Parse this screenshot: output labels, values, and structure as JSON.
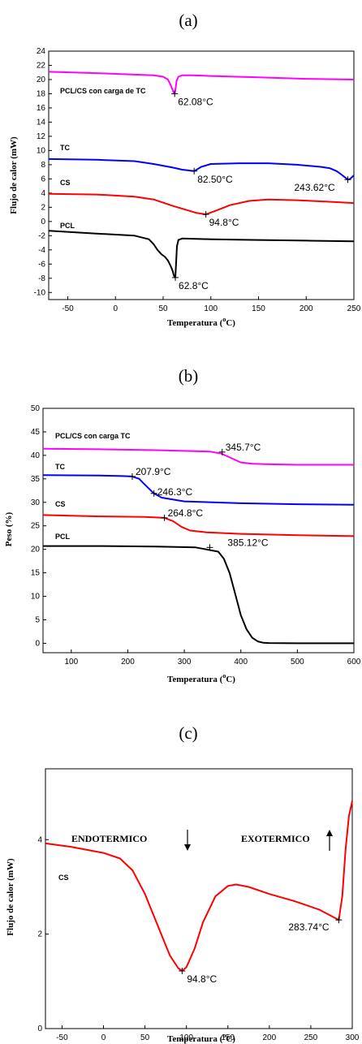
{
  "chart_data": [
    {
      "id": "a",
      "panel_label": "(a)",
      "type": "line",
      "xlabel": "Temperatura (",
      "xlabel_sup": "o",
      "xlabel_end": "C)",
      "ylabel": "Flujo de calor (mW)",
      "xlim": [
        -70,
        250
      ],
      "ylim": [
        -11,
        24
      ],
      "xticks": [
        -50,
        0,
        50,
        100,
        150,
        200,
        250
      ],
      "yticks": [
        -10,
        -8,
        -6,
        -4,
        -2,
        0,
        2,
        4,
        6,
        8,
        10,
        12,
        14,
        16,
        18,
        20,
        22,
        24
      ],
      "series": [
        {
          "name": "PCL/CS con carga de TC",
          "color": "#ff00ff",
          "x": [
            -70,
            -20,
            20,
            40,
            50,
            55,
            58,
            60,
            61,
            62.08,
            63,
            64,
            66,
            70,
            80,
            100,
            150,
            200,
            250
          ],
          "y": [
            21.1,
            20.9,
            20.7,
            20.6,
            20.4,
            20.0,
            19.2,
            18.5,
            18.2,
            18.0,
            18.7,
            19.8,
            20.4,
            20.6,
            20.6,
            20.5,
            20.3,
            20.1,
            20.0
          ]
        },
        {
          "name": "TC",
          "color": "#0000ff",
          "x": [
            -70,
            -20,
            20,
            40,
            60,
            70,
            82.5,
            90,
            100,
            130,
            160,
            190,
            215,
            225,
            232,
            238,
            243.62,
            246,
            250
          ],
          "y": [
            8.8,
            8.7,
            8.5,
            8.1,
            7.6,
            7.3,
            7.1,
            7.7,
            8.1,
            8.2,
            8.2,
            8.0,
            7.7,
            7.5,
            7.1,
            6.5,
            5.9,
            6.0,
            6.5
          ]
        },
        {
          "name": "CS",
          "color": "#ff0000",
          "x": [
            -70,
            -20,
            20,
            40,
            60,
            75,
            85,
            94.8,
            105,
            120,
            140,
            160,
            190,
            220,
            250
          ],
          "y": [
            3.9,
            3.8,
            3.5,
            3.1,
            2.2,
            1.6,
            1.2,
            1.0,
            1.5,
            2.3,
            2.9,
            3.1,
            3.0,
            2.8,
            2.6
          ]
        },
        {
          "name": "PCL",
          "color": "#000000",
          "x": [
            -70,
            -20,
            20,
            35,
            40,
            44,
            48,
            52,
            55,
            58,
            60,
            61,
            62,
            62.8,
            63.5,
            64.5,
            66,
            70,
            100,
            150,
            200,
            250
          ],
          "y": [
            -1.3,
            -1.7,
            -2.0,
            -2.5,
            -3.2,
            -4.0,
            -4.6,
            -5.0,
            -5.5,
            -6.3,
            -7.0,
            -7.5,
            -7.8,
            -7.9,
            -6.0,
            -3.5,
            -2.6,
            -2.4,
            -2.5,
            -2.6,
            -2.7,
            -2.8
          ]
        }
      ],
      "annotations": [
        {
          "text": "62.08°C",
          "x": 62.08,
          "y": 18.0
        },
        {
          "text": "82.50°C",
          "x": 82.5,
          "y": 7.1
        },
        {
          "text": "243.62°C",
          "x": 243.62,
          "y": 5.9
        },
        {
          "text": "94.8°C",
          "x": 94.8,
          "y": 1.0
        },
        {
          "text": "62.8°C",
          "x": 62.8,
          "y": -7.9
        }
      ]
    },
    {
      "id": "b",
      "panel_label": "(b)",
      "type": "line",
      "xlabel": "Temperatura (",
      "xlabel_sup": "o",
      "xlabel_end": "C)",
      "ylabel": "Peso (%)",
      "xlim": [
        50,
        600
      ],
      "ylim": [
        -2,
        50
      ],
      "xticks": [
        100,
        200,
        300,
        400,
        500,
        600
      ],
      "yticks": [
        0,
        5,
        10,
        15,
        20,
        25,
        30,
        35,
        40,
        45,
        50
      ],
      "series": [
        {
          "name": "PCL/CS con carga TC",
          "color": "#ff00ff",
          "x": [
            50,
            150,
            250,
            320,
            345.7,
            365,
            385,
            400,
            420,
            450,
            500,
            600
          ],
          "y": [
            41.4,
            41.3,
            41.1,
            40.9,
            40.8,
            40.4,
            39.3,
            38.5,
            38.2,
            38.1,
            38.0,
            38.0
          ]
        },
        {
          "name": "TC",
          "color": "#0000ff",
          "x": [
            50,
            150,
            190,
            207.9,
            220,
            230,
            240,
            246.3,
            260,
            300,
            400,
            500,
            600
          ],
          "y": [
            35.8,
            35.7,
            35.6,
            35.5,
            35.0,
            33.8,
            32.6,
            31.9,
            31.0,
            30.2,
            29.8,
            29.6,
            29.5
          ]
        },
        {
          "name": "CS",
          "color": "#ff0000",
          "x": [
            50,
            150,
            230,
            264.8,
            280,
            295,
            310,
            340,
            400,
            500,
            600
          ],
          "y": [
            27.3,
            27.0,
            26.9,
            26.7,
            26.0,
            24.8,
            24.0,
            23.6,
            23.3,
            23.0,
            22.8
          ]
        },
        {
          "name": "PCL",
          "color": "#000000",
          "x": [
            50,
            150,
            250,
            320,
            360,
            370,
            380,
            390,
            400,
            410,
            420,
            430,
            440,
            450,
            500,
            600
          ],
          "y": [
            20.7,
            20.7,
            20.6,
            20.4,
            19.5,
            18.0,
            15.0,
            10.5,
            6.0,
            3.0,
            1.2,
            0.4,
            0.1,
            0.05,
            0.0,
            0.0
          ]
        }
      ],
      "annotations": [
        {
          "text": "345.7°C",
          "x": 367,
          "y": 40.7
        },
        {
          "text": "207.9°C",
          "x": 207.9,
          "y": 35.5
        },
        {
          "text": "246.3°C",
          "x": 246.3,
          "y": 31.9
        },
        {
          "text": "264.8°C",
          "x": 264.8,
          "y": 26.7
        },
        {
          "text": "385.12°C",
          "x": 345,
          "y": 20.4
        }
      ]
    },
    {
      "id": "c",
      "panel_label": "(c)",
      "type": "line",
      "xlabel": "Temperatura (",
      "xlabel_sup": "o",
      "xlabel_end": "C)",
      "ylabel": "Flujo de calor (mW)",
      "xlim": [
        -70,
        300
      ],
      "ylim": [
        0,
        5.5
      ],
      "xticks": [
        -50,
        0,
        50,
        100,
        150,
        200,
        250,
        300
      ],
      "yticks": [
        0,
        2,
        4
      ],
      "series": [
        {
          "name": "CS",
          "color": "#ff0000",
          "x": [
            -70,
            -40,
            0,
            20,
            35,
            50,
            65,
            80,
            90,
            94.8,
            100,
            110,
            120,
            135,
            150,
            160,
            175,
            200,
            230,
            260,
            275,
            283.74,
            288,
            292,
            296,
            300
          ],
          "y": [
            3.92,
            3.85,
            3.72,
            3.6,
            3.35,
            2.85,
            2.2,
            1.55,
            1.28,
            1.22,
            1.3,
            1.7,
            2.25,
            2.8,
            3.02,
            3.05,
            3.0,
            2.85,
            2.7,
            2.52,
            2.38,
            2.3,
            2.8,
            3.8,
            4.5,
            4.82
          ]
        }
      ],
      "annotations": [
        {
          "text": "94.8°C",
          "x": 94.8,
          "y": 1.22
        },
        {
          "text": "283.74°C",
          "x": 283.74,
          "y": 2.3
        }
      ],
      "markers": {
        "endo": "ENDOTERMICO",
        "exo": "EXOTERMICO"
      }
    }
  ]
}
